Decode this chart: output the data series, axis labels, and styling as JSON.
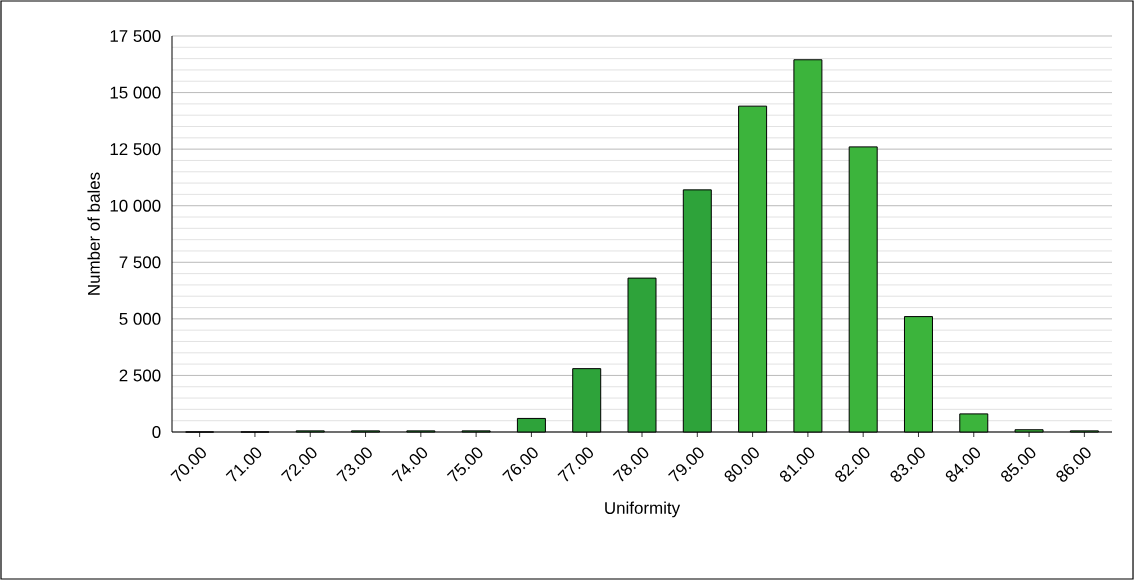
{
  "chart_data": {
    "type": "bar",
    "xlabel": "Uniformity",
    "ylabel": "Number  of bales",
    "categories": [
      "70.00",
      "71.00",
      "72.00",
      "73.00",
      "74.00",
      "75.00",
      "76.00",
      "77.00",
      "78.00",
      "79.00",
      "80.00",
      "81.00",
      "82.00",
      "83.00",
      "84.00",
      "85.00",
      "86.00"
    ],
    "series": [
      {
        "color": "#2ea33a",
        "values": [
          0,
          0,
          50,
          50,
          50,
          50,
          600,
          2800,
          6800,
          10700,
          null,
          null,
          null,
          null,
          null,
          null,
          null
        ]
      },
      {
        "color": "#3cb43c",
        "values": [
          null,
          null,
          null,
          null,
          null,
          null,
          null,
          null,
          null,
          null,
          14400,
          16450,
          12600,
          5100,
          800,
          100,
          50
        ]
      }
    ],
    "ylim": [
      0,
      17500
    ],
    "yticks": [
      {
        "value": 0,
        "label": "0"
      },
      {
        "value": 2500,
        "label": "2 500"
      },
      {
        "value": 5000,
        "label": "5 000"
      },
      {
        "value": 7500,
        "label": "7 500"
      },
      {
        "value": 10000,
        "label": "10 000"
      },
      {
        "value": 12500,
        "label": "12 500"
      },
      {
        "value": 15000,
        "label": "15 000"
      },
      {
        "value": 17500,
        "label": "17 500"
      }
    ],
    "grid": "y"
  }
}
